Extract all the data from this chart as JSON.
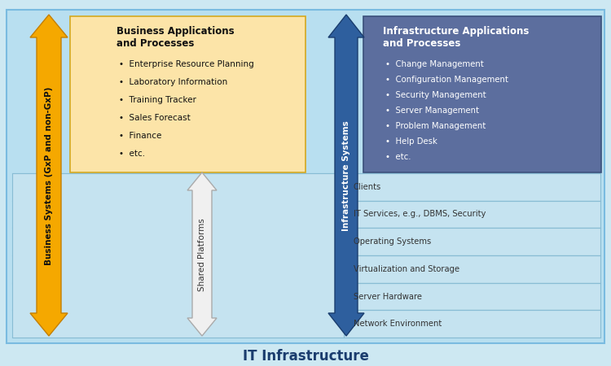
{
  "title": "IT Infrastructure",
  "outer_bg": "#cde8f2",
  "inner_bg": "#b8dff0",
  "business_box_bg": "#fce4a8",
  "business_box_edge": "#d4a820",
  "infra_app_box_bg": "#5c6e9e",
  "infra_app_box_edge": "#3a4f7a",
  "layer_bg": "#c5e3f0",
  "layer_edge": "#88bcd4",
  "business_app_box_title": "Business Applications\nand Processes",
  "business_app_items": [
    "Enterprise Resource Planning",
    "Laboratory Information",
    "Training Tracker",
    "Sales Forecast",
    "Finance",
    "etc."
  ],
  "infra_app_box_title": "Infrastructure Applications\nand Processes",
  "infra_app_items": [
    "Change Management",
    "Configuration Management",
    "Security Management",
    "Server Management",
    "Problem Management",
    "Help Desk",
    "etc."
  ],
  "infra_layers": [
    "Clients",
    "IT Services, e.g., DBMS, Security",
    "Operating Systems",
    "Virtualization and Storage",
    "Server Hardware",
    "Network Environment"
  ],
  "orange_arrow_label": "Business Systems (GxP and non-GxP)",
  "blue_arrow_label": "Infrastructure Systems",
  "white_arrow_label": "Shared Platforms",
  "orange_color": "#f5a800",
  "orange_edge": "#c47f00",
  "blue_color": "#2e5f9e",
  "blue_edge": "#1a3d6e",
  "white_color": "#f0f0f0",
  "white_edge": "#aaaaaa",
  "title_color": "#1a3d6e",
  "title_fontsize": 12,
  "layer_text_color": "#333333",
  "infra_app_text_color": "#ffffff"
}
